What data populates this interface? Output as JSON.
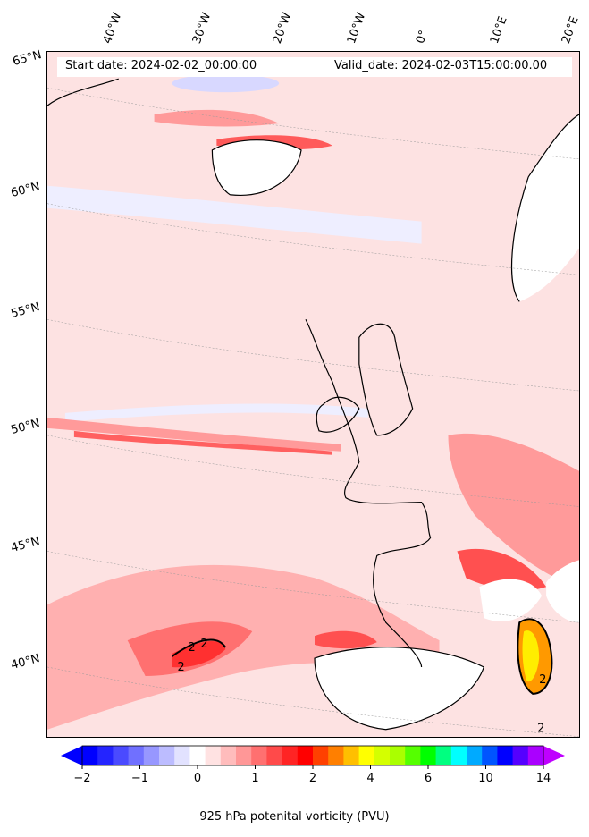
{
  "header": {
    "start_date": "Start date: 2024-02-02_00:00:00",
    "valid_date": "Valid_date: 2024-02-03T15:00:00.00"
  },
  "longitude_labels": [
    "40°W",
    "30°W",
    "20°W",
    "10°W",
    "0°",
    "10°E",
    "20°E"
  ],
  "latitude_labels": [
    "65°N",
    "60°N",
    "55°N",
    "50°N",
    "45°N",
    "40°N"
  ],
  "contour_labels": [
    "2",
    "2",
    "2",
    "2",
    "2"
  ],
  "colorbar": {
    "title": "925 hPa potenital vorticity (PVU)",
    "ticks": [
      "−2",
      "−1",
      "0",
      "1",
      "2",
      "4",
      "6",
      "10",
      "14"
    ],
    "colors": [
      "#0000ff",
      "#2424ff",
      "#4a4aff",
      "#7070ff",
      "#9797ff",
      "#bcbcff",
      "#e2e2ff",
      "#ffffff",
      "#ffe2e2",
      "#ffbcbc",
      "#ff9797",
      "#ff7070",
      "#ff4a4a",
      "#ff2424",
      "#ff0000",
      "#ff4000",
      "#ff7f00",
      "#ffbf00",
      "#ffff00",
      "#d4ff00",
      "#aaff00",
      "#55ff00",
      "#00ff00",
      "#00ff80",
      "#00ffff",
      "#00aaff",
      "#0055ff",
      "#0000ff",
      "#5500ff",
      "#aa00ff"
    ],
    "extend_low_color": "#0000ff",
    "extend_high_color": "#bf00ff"
  },
  "map_colors": {
    "background": "#fde2e2",
    "land_mask": "#ffffff",
    "light_blue": "#e8e8ff",
    "pink_light": "#ffc4c4",
    "pink_mid": "#ff9a9a",
    "red": "#ff3030",
    "yellow": "#ffee00",
    "orange": "#ff9900"
  }
}
